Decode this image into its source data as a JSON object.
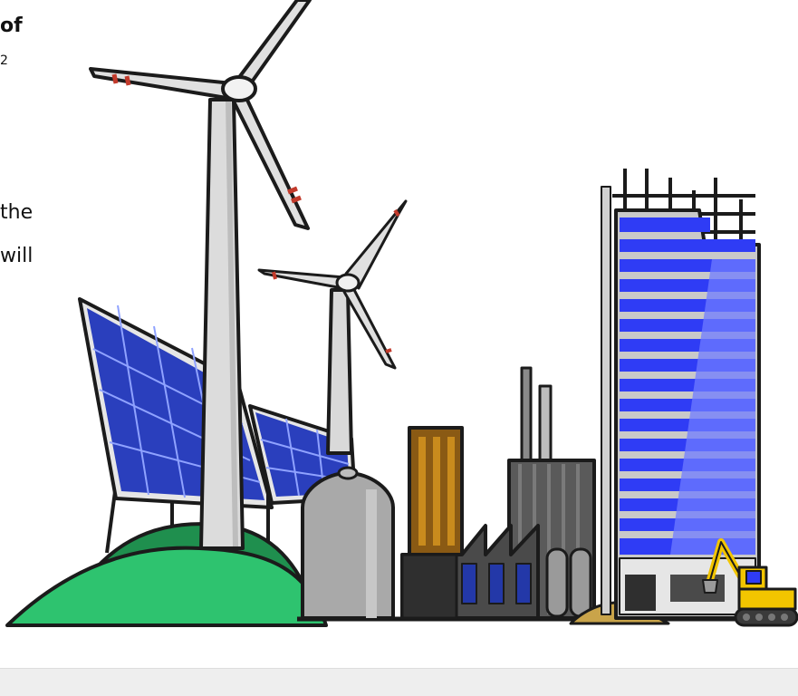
{
  "text_fragments": {
    "title_fragment": "of",
    "superscript_fragment": "2",
    "line_1_fragment": "the",
    "line_2_fragment": "will"
  },
  "icons": {
    "wind_turbine_large": "wind-turbine-icon",
    "wind_turbine_small": "wind-turbine-icon",
    "solar_panel": "solar-panel-icon",
    "factory": "factory-icon",
    "skyscraper": "skyscraper-icon",
    "excavator": "excavator-icon"
  },
  "colors": {
    "hill_light": "#2ec36f",
    "hill_dark": "#1f8f4e",
    "solar_blue": "#2a3fbd",
    "glass_blue": "#2f3cf5",
    "excavator_yellow": "#f2c500",
    "outline": "#1b1b1b"
  }
}
